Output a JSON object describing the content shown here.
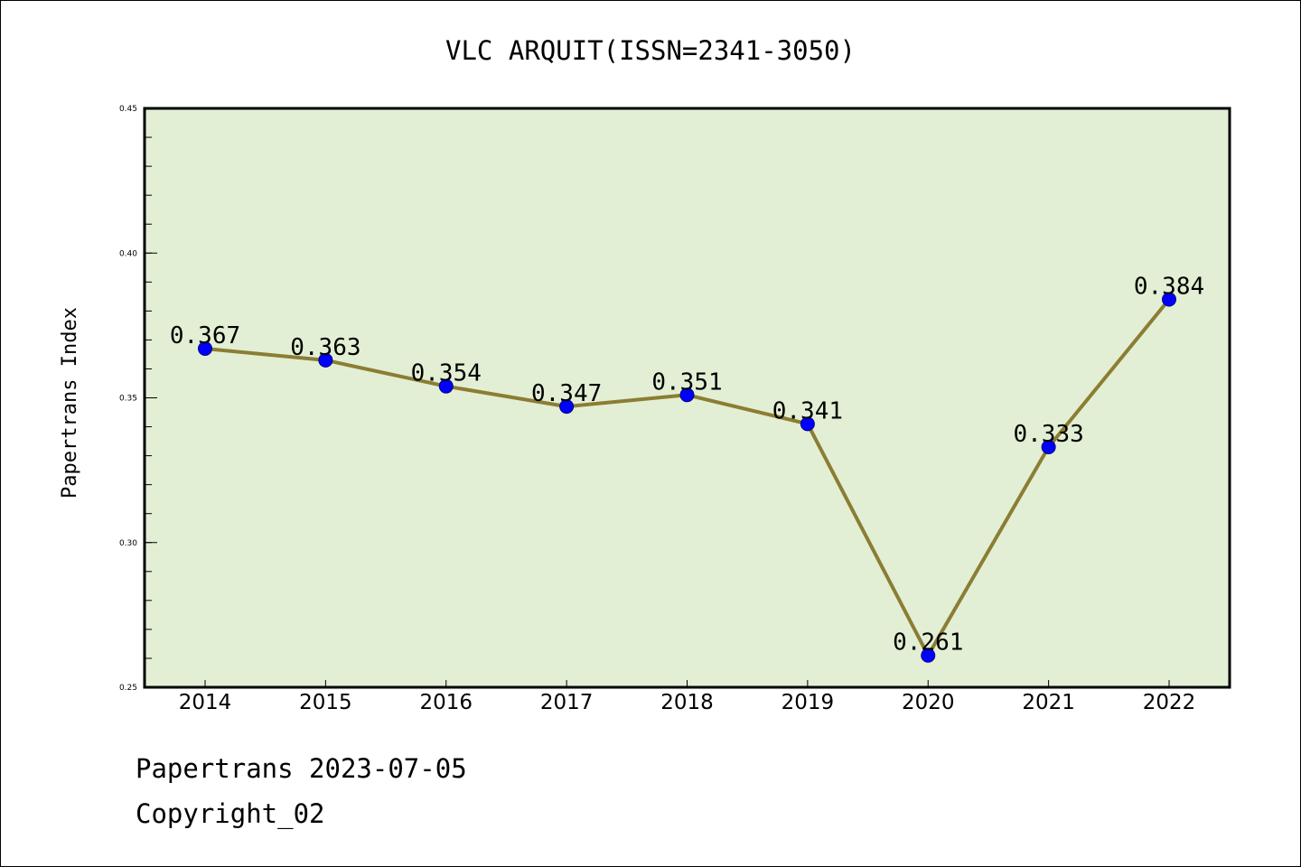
{
  "chart_data": {
    "type": "line",
    "title": "VLC ARQUIT(ISSN=2341-3050)",
    "xlabel": "",
    "ylabel": "Papertrans Index",
    "categories": [
      "2014",
      "2015",
      "2016",
      "2017",
      "2018",
      "2019",
      "2020",
      "2021",
      "2022"
    ],
    "values": [
      0.367,
      0.363,
      0.354,
      0.347,
      0.351,
      0.341,
      0.261,
      0.333,
      0.384
    ],
    "data_labels": [
      "0.367",
      "0.363",
      "0.354",
      "0.347",
      "0.351",
      "0.341",
      "0.261",
      "0.333",
      "0.384"
    ],
    "ylim": [
      0.25,
      0.45
    ],
    "yticks": [
      "0.25",
      "0.30",
      "0.35",
      "0.40",
      "0.45"
    ],
    "ytick_values": [
      0.25,
      0.3,
      0.35,
      0.4,
      0.45
    ],
    "grid": false,
    "colors": {
      "plot_background": "#e2efd4",
      "line": "#8b7d33",
      "marker": "#0000ff"
    }
  },
  "footer": {
    "line1": "Papertrans 2023-07-05",
    "line2": "Copyright_02"
  }
}
